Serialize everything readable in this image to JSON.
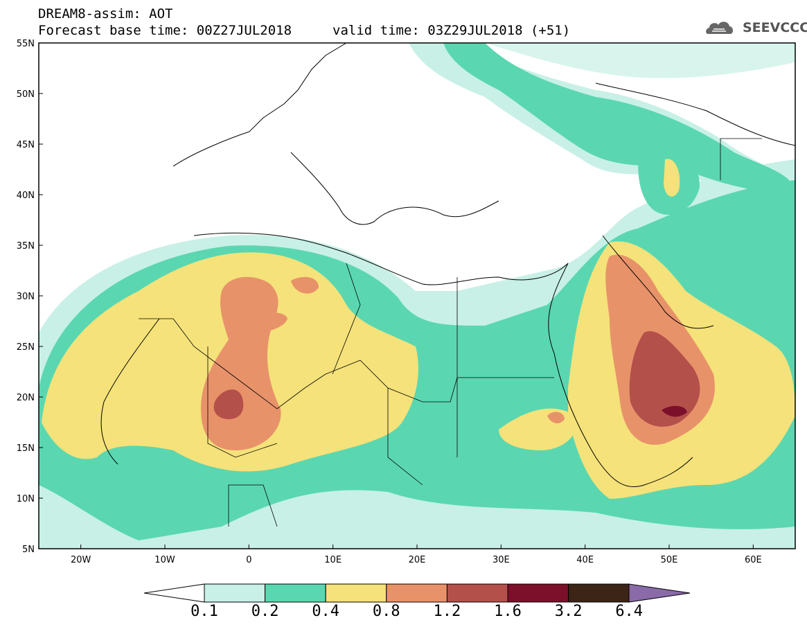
{
  "header": {
    "line1": "DREAM8-assim: AOT",
    "line2": "Forecast base time: 00Z27JUL2018",
    "line3": "valid time: 03Z29JUL2018 (+51)"
  },
  "logo": {
    "text": "SEEVCCC"
  },
  "map": {
    "lat_labels": [
      "55N",
      "50N",
      "45N",
      "40N",
      "35N",
      "30N",
      "25N",
      "20N",
      "15N",
      "10N",
      "5N"
    ],
    "lon_labels": [
      "20W",
      "10W",
      "0",
      "10E",
      "20E",
      "30E",
      "40E",
      "50E",
      "60E"
    ],
    "lat_range": [
      5,
      55
    ],
    "lon_range": [
      -25,
      65
    ]
  },
  "colorbar": {
    "colors": [
      "#c8f0e6",
      "#5ad7b0",
      "#f5e27a",
      "#e8926a",
      "#b4504a",
      "#7c0f2a",
      "#3c2416",
      "#8a6aa8"
    ],
    "labels": [
      "0.1",
      "0.2",
      "0.4",
      "0.8",
      "1.2",
      "1.6",
      "3.2",
      "6.4"
    ]
  }
}
